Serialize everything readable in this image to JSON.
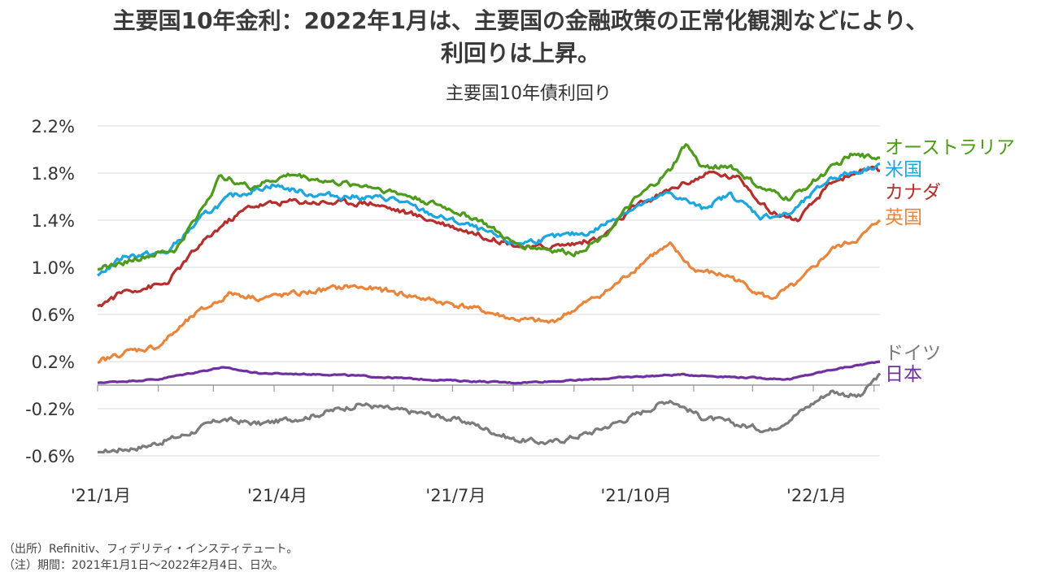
{
  "headline": {
    "line1": "主要国10年金利：2022年1月は、主要国の金融政策の正常化観測などにより、",
    "line2": "利回りは上昇。"
  },
  "notes": {
    "source": "（出所）Refinitiv、フィデリティ・インスティテュート。",
    "period": "（注）期間：2021年1月1日～2022年2月4日、日次。"
  },
  "chart_data": {
    "type": "line",
    "title": "主要国10年債利回り",
    "x_axis": {
      "start": "2021-01-01",
      "end": "2022-02-04",
      "tick_labels": [
        "'21/1月",
        "'21/4月",
        "'21/7月",
        "'21/10月",
        "'22/1月"
      ]
    },
    "y_axis": {
      "range": [
        -0.6,
        2.2
      ],
      "unit": "%",
      "ticks": [
        -0.6,
        -0.2,
        0.2,
        0.6,
        1.0,
        1.4,
        1.8,
        2.2
      ],
      "tick_labels": [
        "-0.6%",
        "-0.2%",
        "0.2%",
        "0.6%",
        "1.0%",
        "1.4%",
        "1.8%",
        "2.2%"
      ]
    },
    "grid": "horizontal",
    "legend": "line-end labels (right)",
    "series": [
      {
        "name": "オーストラリア",
        "color": "#4e9a1a",
        "points": [
          [
            "2021-01-01",
            0.98
          ],
          [
            "2021-01-20",
            1.07
          ],
          [
            "2021-02-10",
            1.15
          ],
          [
            "2021-02-25",
            1.55
          ],
          [
            "2021-03-05",
            1.78
          ],
          [
            "2021-03-20",
            1.68
          ],
          [
            "2021-04-10",
            1.79
          ],
          [
            "2021-05-01",
            1.72
          ],
          [
            "2021-05-20",
            1.69
          ],
          [
            "2021-06-10",
            1.6
          ],
          [
            "2021-06-25",
            1.52
          ],
          [
            "2021-07-15",
            1.4
          ],
          [
            "2021-08-01",
            1.2
          ],
          [
            "2021-08-20",
            1.15
          ],
          [
            "2021-09-01",
            1.12
          ],
          [
            "2021-09-15",
            1.25
          ],
          [
            "2021-10-01",
            1.55
          ],
          [
            "2021-10-20",
            1.82
          ],
          [
            "2021-10-28",
            2.05
          ],
          [
            "2021-11-05",
            1.85
          ],
          [
            "2021-11-20",
            1.86
          ],
          [
            "2021-12-05",
            1.67
          ],
          [
            "2021-12-20",
            1.58
          ],
          [
            "2022-01-05",
            1.78
          ],
          [
            "2022-01-20",
            1.95
          ],
          [
            "2022-02-04",
            1.93
          ]
        ]
      },
      {
        "name": "米国",
        "color": "#1ca6df",
        "points": [
          [
            "2021-01-01",
            0.93
          ],
          [
            "2021-01-15",
            1.1
          ],
          [
            "2021-02-05",
            1.12
          ],
          [
            "2021-02-25",
            1.45
          ],
          [
            "2021-03-10",
            1.6
          ],
          [
            "2021-03-31",
            1.7
          ],
          [
            "2021-04-20",
            1.62
          ],
          [
            "2021-05-10",
            1.6
          ],
          [
            "2021-06-01",
            1.58
          ],
          [
            "2021-06-20",
            1.45
          ],
          [
            "2021-07-10",
            1.35
          ],
          [
            "2021-08-01",
            1.2
          ],
          [
            "2021-08-20",
            1.25
          ],
          [
            "2021-09-10",
            1.3
          ],
          [
            "2021-09-28",
            1.48
          ],
          [
            "2021-10-20",
            1.63
          ],
          [
            "2021-11-05",
            1.5
          ],
          [
            "2021-11-20",
            1.62
          ],
          [
            "2021-12-05",
            1.43
          ],
          [
            "2021-12-20",
            1.45
          ],
          [
            "2022-01-10",
            1.76
          ],
          [
            "2022-01-25",
            1.82
          ],
          [
            "2022-02-04",
            1.88
          ]
        ]
      },
      {
        "name": "カナダ",
        "color": "#b52f2c",
        "points": [
          [
            "2021-01-01",
            0.67
          ],
          [
            "2021-01-15",
            0.8
          ],
          [
            "2021-02-05",
            0.86
          ],
          [
            "2021-02-20",
            1.15
          ],
          [
            "2021-03-05",
            1.35
          ],
          [
            "2021-03-20",
            1.52
          ],
          [
            "2021-04-10",
            1.56
          ],
          [
            "2021-05-01",
            1.55
          ],
          [
            "2021-05-20",
            1.55
          ],
          [
            "2021-06-10",
            1.45
          ],
          [
            "2021-06-25",
            1.38
          ],
          [
            "2021-07-20",
            1.25
          ],
          [
            "2021-08-10",
            1.16
          ],
          [
            "2021-09-01",
            1.2
          ],
          [
            "2021-09-15",
            1.25
          ],
          [
            "2021-10-01",
            1.5
          ],
          [
            "2021-10-25",
            1.7
          ],
          [
            "2021-11-10",
            1.8
          ],
          [
            "2021-11-25",
            1.75
          ],
          [
            "2021-12-10",
            1.47
          ],
          [
            "2021-12-25",
            1.4
          ],
          [
            "2022-01-10",
            1.72
          ],
          [
            "2022-01-25",
            1.82
          ],
          [
            "2022-02-04",
            1.82
          ]
        ]
      },
      {
        "name": "英国",
        "color": "#e9853b",
        "points": [
          [
            "2021-01-01",
            0.19
          ],
          [
            "2021-01-15",
            0.28
          ],
          [
            "2021-02-01",
            0.33
          ],
          [
            "2021-02-20",
            0.6
          ],
          [
            "2021-03-10",
            0.78
          ],
          [
            "2021-03-25",
            0.74
          ],
          [
            "2021-04-15",
            0.78
          ],
          [
            "2021-05-10",
            0.84
          ],
          [
            "2021-06-01",
            0.79
          ],
          [
            "2021-06-20",
            0.72
          ],
          [
            "2021-07-10",
            0.66
          ],
          [
            "2021-08-01",
            0.56
          ],
          [
            "2021-08-20",
            0.53
          ],
          [
            "2021-09-01",
            0.64
          ],
          [
            "2021-09-20",
            0.82
          ],
          [
            "2021-10-10",
            1.1
          ],
          [
            "2021-10-20",
            1.18
          ],
          [
            "2021-11-01",
            0.98
          ],
          [
            "2021-11-20",
            0.92
          ],
          [
            "2021-12-10",
            0.73
          ],
          [
            "2021-12-25",
            0.87
          ],
          [
            "2022-01-10",
            1.15
          ],
          [
            "2022-01-25",
            1.25
          ],
          [
            "2022-02-04",
            1.4
          ]
        ]
      },
      {
        "name": "ドイツ",
        "color": "#7b7b7b",
        "points": [
          [
            "2021-01-01",
            -0.57
          ],
          [
            "2021-01-25",
            -0.52
          ],
          [
            "2021-02-15",
            -0.42
          ],
          [
            "2021-03-05",
            -0.29
          ],
          [
            "2021-03-25",
            -0.33
          ],
          [
            "2021-04-20",
            -0.26
          ],
          [
            "2021-05-15",
            -0.16
          ],
          [
            "2021-06-01",
            -0.21
          ],
          [
            "2021-06-20",
            -0.25
          ],
          [
            "2021-07-10",
            -0.32
          ],
          [
            "2021-08-01",
            -0.46
          ],
          [
            "2021-08-20",
            -0.49
          ],
          [
            "2021-09-10",
            -0.4
          ],
          [
            "2021-09-30",
            -0.27
          ],
          [
            "2021-10-20",
            -0.12
          ],
          [
            "2021-11-05",
            -0.27
          ],
          [
            "2021-11-25",
            -0.34
          ],
          [
            "2021-12-10",
            -0.38
          ],
          [
            "2021-12-25",
            -0.23
          ],
          [
            "2022-01-10",
            -0.05
          ],
          [
            "2022-01-25",
            -0.1
          ],
          [
            "2022-02-04",
            0.1
          ]
        ]
      },
      {
        "name": "日本",
        "color": "#7030a0",
        "points": [
          [
            "2021-01-01",
            0.02
          ],
          [
            "2021-02-01",
            0.05
          ],
          [
            "2021-03-05",
            0.15
          ],
          [
            "2021-03-25",
            0.1
          ],
          [
            "2021-05-01",
            0.09
          ],
          [
            "2021-06-15",
            0.05
          ],
          [
            "2021-08-01",
            0.02
          ],
          [
            "2021-09-01",
            0.04
          ],
          [
            "2021-10-01",
            0.07
          ],
          [
            "2021-10-25",
            0.09
          ],
          [
            "2021-11-20",
            0.07
          ],
          [
            "2021-12-20",
            0.05
          ],
          [
            "2022-01-10",
            0.13
          ],
          [
            "2022-02-04",
            0.2
          ]
        ]
      }
    ]
  }
}
